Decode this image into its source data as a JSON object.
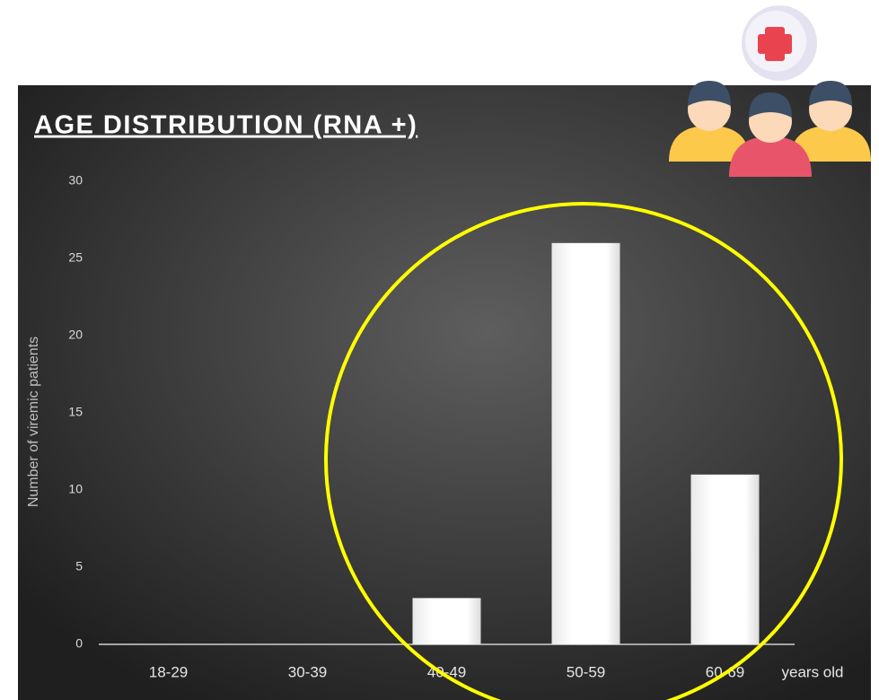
{
  "chart_data": {
    "type": "bar",
    "title": "AGE DISTRIBUTION (RNA +)",
    "y_axis_label": "Number of viremic patients",
    "x_axis_label": "years old",
    "categories": [
      "18-29",
      "30-39",
      "40-49",
      "50-59",
      "60-69"
    ],
    "values": [
      0,
      0,
      3,
      26,
      11
    ],
    "color": "#ffffff",
    "ylim": [
      0,
      30
    ],
    "yticks": [
      0,
      5,
      10,
      15,
      20,
      25,
      30
    ]
  }
}
